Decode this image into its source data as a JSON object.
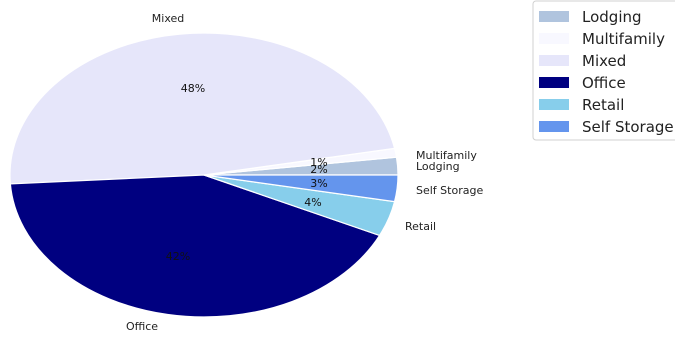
{
  "chart_data": {
    "type": "pie",
    "title": "",
    "categories": [
      "Lodging",
      "Multifamily",
      "Mixed",
      "Office",
      "Retail",
      "Self Storage"
    ],
    "values": [
      2,
      1,
      48,
      42,
      4,
      3
    ],
    "value_labels": [
      "2%",
      "1%",
      "48%",
      "42%",
      "4%",
      "3%"
    ],
    "colors": [
      "#b0c4de",
      "#f8f8ff",
      "#e6e6fa",
      "#000080",
      "#87ceeb",
      "#6495ed"
    ],
    "slice_order": [
      "Lodging",
      "Multifamily",
      "Mixed",
      "Office",
      "Retail",
      "Self Storage"
    ],
    "start_angle_deg": 0,
    "direction": "counterclockwise",
    "legend": {
      "placement": "top-right",
      "entries": [
        "Lodging",
        "Multifamily",
        "Mixed",
        "Office",
        "Retail",
        "Self Storage"
      ]
    }
  }
}
